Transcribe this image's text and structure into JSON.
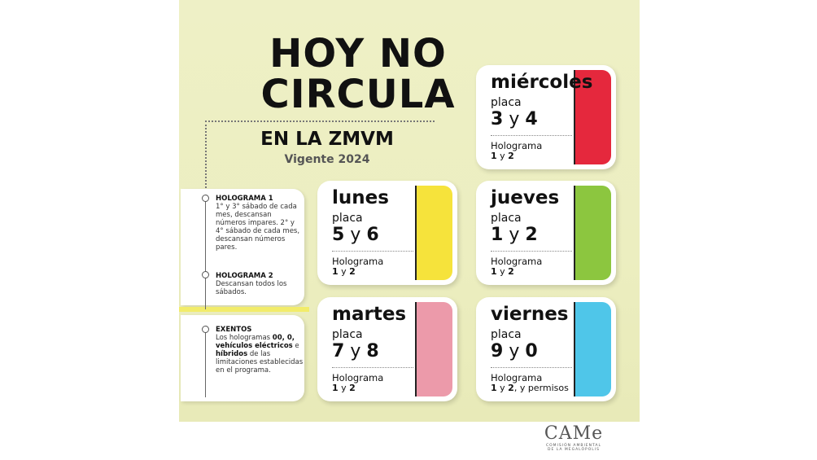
{
  "title": {
    "line1": "HOY NO",
    "line2": "CIRCULA",
    "subtitle": "EN LA ZMVM",
    "validity": "Vigente 2024"
  },
  "notes": [
    {
      "heading": "HOLOGRAMA 1",
      "text": "1° y 3° sábado de cada mes, descansan números impares. 2° y 4° sábado de cada mes, descansan números pares."
    },
    {
      "heading": "HOLOGRAMA 2",
      "text": "Descansan todos los sábados."
    },
    {
      "heading": "EXENTOS",
      "text_parts": [
        "Los hologramas ",
        "00, 0,",
        " ",
        "vehículos eléctricos",
        " e ",
        "híbridos",
        " de las limitaciones establecidas en el programa."
      ]
    }
  ],
  "cards": [
    {
      "day": "miércoles",
      "placa": "placa",
      "d1": "3",
      "y": "y",
      "d2": "4",
      "holo": "Holograma",
      "holo_a": "1",
      "holo_y": " y ",
      "holo_b": "2",
      "extra": "",
      "color": "#e5283d"
    },
    {
      "day": "lunes",
      "placa": "placa",
      "d1": "5",
      "y": "y",
      "d2": "6",
      "holo": "Holograma",
      "holo_a": "1",
      "holo_y": " y ",
      "holo_b": "2",
      "extra": "",
      "color": "#f6e33b"
    },
    {
      "day": "jueves",
      "placa": "placa",
      "d1": "1",
      "y": "y",
      "d2": "2",
      "holo": "Holograma",
      "holo_a": "1",
      "holo_y": " y ",
      "holo_b": "2",
      "extra": "",
      "color": "#8cc63f"
    },
    {
      "day": "martes",
      "placa": "placa",
      "d1": "7",
      "y": "y",
      "d2": "8",
      "holo": "Holograma",
      "holo_a": "1",
      "holo_y": " y ",
      "holo_b": "2",
      "extra": "",
      "color": "#ec9aaa"
    },
    {
      "day": "viernes",
      "placa": "placa",
      "d1": "9",
      "y": "y",
      "d2": "0",
      "holo": "Holograma",
      "holo_a": "1",
      "holo_y": " y ",
      "holo_b": "2",
      "extra": ", y permisos",
      "color": "#4fc6e9"
    }
  ],
  "logo": {
    "text": "CAMe",
    "caption1": "COMISIÓN AMBIENTAL",
    "caption2": "DE LA MEGALÓPOLIS"
  }
}
